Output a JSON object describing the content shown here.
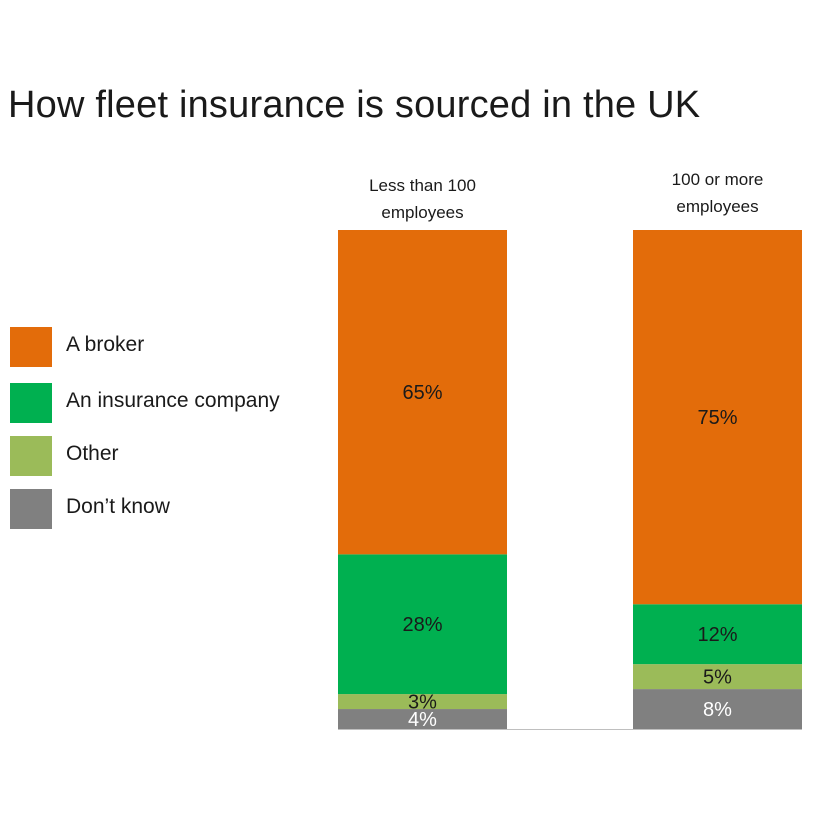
{
  "title": "How fleet insurance is sourced in the UK",
  "legend": [
    {
      "label": "A broker",
      "color": "#E36C0A"
    },
    {
      "label": "An insurance company",
      "color": "#00B050"
    },
    {
      "label": "Other",
      "color": "#9BBB59"
    },
    {
      "label": "Don’t know",
      "color": "#808080"
    }
  ],
  "chart_data": {
    "type": "bar",
    "stacked": true,
    "percent_stacked": true,
    "categories": [
      [
        "Less than 100",
        "employees"
      ],
      [
        "100 or more",
        "employees"
      ]
    ],
    "series": [
      {
        "name": "Don’t know",
        "color": "#808080",
        "label_color": "#ffffff",
        "values": [
          4,
          8
        ],
        "labels": [
          "4%",
          "8%"
        ]
      },
      {
        "name": "Other",
        "color": "#9BBB59",
        "label_color": "#1a1a1a",
        "values": [
          3,
          5
        ],
        "labels": [
          "3%",
          "5%"
        ]
      },
      {
        "name": "An insurance company",
        "color": "#00B050",
        "label_color": "#1a1a1a",
        "values": [
          28,
          12
        ],
        "labels": [
          "28%",
          "12%"
        ]
      },
      {
        "name": "A broker",
        "color": "#E36C0A",
        "label_color": "#1a1a1a",
        "values": [
          65,
          75
        ],
        "labels": [
          "65%",
          "75%"
        ]
      }
    ],
    "ylim": [
      0,
      100
    ],
    "grid": false,
    "legend_position": "left"
  }
}
